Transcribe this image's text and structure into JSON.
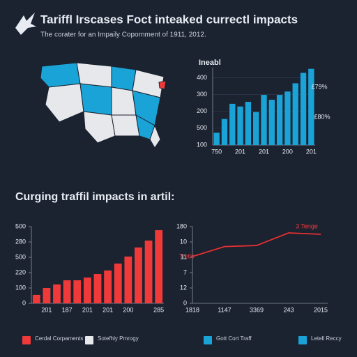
{
  "header": {
    "title": "Tariffl Irscases Foct inteaked currectl impacts",
    "subtitle": "The corater for an Impaily Copornment of 1911, 2012."
  },
  "section_title": "Curging traffil impacts in artil:",
  "chart_data": [
    {
      "type": "bar",
      "title": "Ineabl",
      "color": "#1aa3d6",
      "grid": true,
      "categories": [
        "750",
        null,
        null,
        "201",
        null,
        null,
        "201",
        null,
        null,
        "200",
        null,
        null,
        "201"
      ],
      "values": [
        173,
        255,
        345,
        329,
        357,
        296,
        398,
        369,
        398,
        418,
        467,
        529,
        553
      ],
      "ylim": [
        100,
        560
      ],
      "yticks": [
        100,
        {
          "value": 200,
          "label": "500"
        },
        {
          "value": 300,
          "label": "200"
        },
        {
          "value": 400,
          "label": "300"
        },
        {
          "value": 500,
          "label": "400"
        }
      ],
      "annotations": [
        {
          "text": "£79%"
        },
        {
          "text": "£80%"
        }
      ]
    },
    {
      "type": "bar",
      "color": "#f03a3a",
      "grid": false,
      "categories": [
        null,
        "201",
        null,
        "187",
        null,
        "201",
        null,
        "201",
        null,
        "200",
        null,
        null,
        "285"
      ],
      "values": [
        55,
        100,
        123,
        150,
        150,
        168,
        191,
        214,
        259,
        305,
        364,
        409,
        477
      ],
      "ylim": [
        0,
        500
      ],
      "yticks": [
        0,
        100,
        {
          "value": 200,
          "label": "220"
        },
        {
          "value": 300,
          "label": "500"
        },
        {
          "value": 400,
          "label": "280"
        },
        500
      ]
    },
    {
      "type": "line",
      "color": "#e63030",
      "grid": false,
      "categories": [
        "1818",
        "1147",
        "3369",
        "243",
        "2015"
      ],
      "values": [
        3.05,
        3.7,
        3.77,
        4.59,
        4.5
      ],
      "ylim": [
        0,
        5
      ],
      "yticks": [
        0,
        {
          "value": 1,
          "label": "12"
        },
        {
          "value": 2,
          "label": "7"
        },
        {
          "value": 3,
          "label": "11"
        },
        {
          "value": 4,
          "label": "10"
        },
        {
          "value": 5,
          "label": "180"
        }
      ],
      "annotations": [
        {
          "text": "3 Tenge"
        },
        {
          "text": "Tietle"
        }
      ]
    }
  ],
  "legend": [
    {
      "label": "Cerdal Corpaments",
      "color": "#f03a3a"
    },
    {
      "label": "Sotefhly Pmrogy",
      "color": "#e6e8ec"
    },
    {
      "label": "Gott Cort Traff",
      "color": "#1aa3d6"
    },
    {
      "label": "Letell Reccy",
      "color": "#1aa3d6"
    }
  ]
}
